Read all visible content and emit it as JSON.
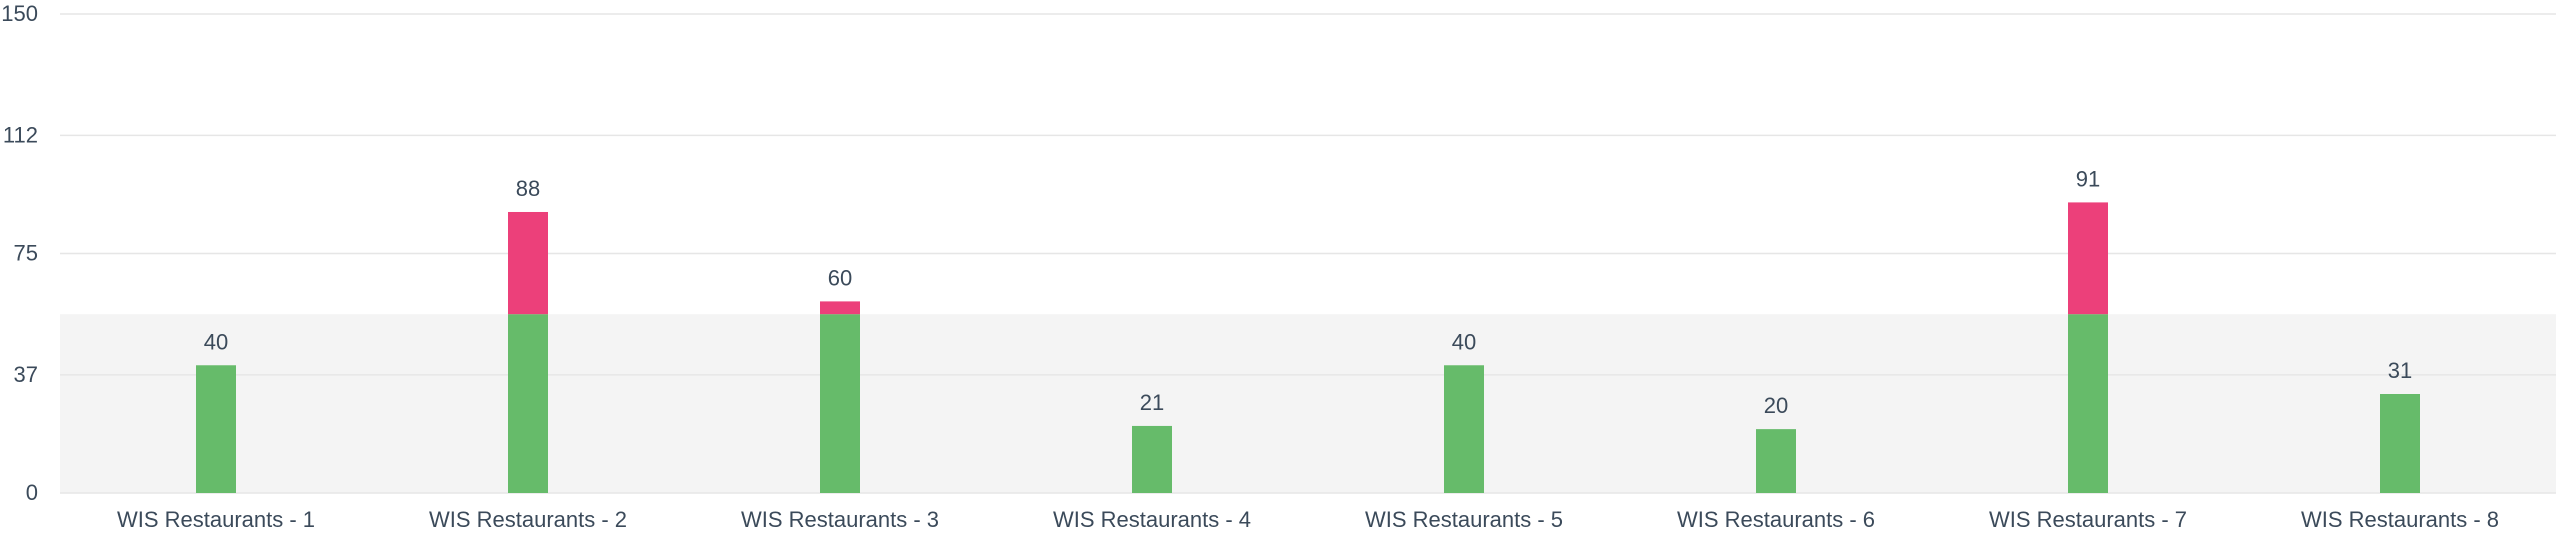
{
  "chart_data": {
    "type": "bar",
    "stacked": true,
    "categories": [
      "WIS Restaurants - 1",
      "WIS Restaurants - 2",
      "WIS Restaurants - 3",
      "WIS Restaurants - 4",
      "WIS Restaurants - 5",
      "WIS Restaurants - 6",
      "WIS Restaurants - 7",
      "WIS Restaurants - 8"
    ],
    "totals": [
      40,
      88,
      60,
      21,
      40,
      20,
      91,
      31
    ],
    "threshold": 56,
    "series": [
      {
        "values": [
          40,
          56,
          56,
          21,
          40,
          20,
          56,
          31
        ],
        "color": "#66bb6a"
      },
      {
        "values": [
          0,
          32,
          4,
          0,
          0,
          0,
          35,
          0
        ],
        "color": "#ec407a"
      }
    ],
    "yticks": [
      "0",
      "37",
      "75",
      "112",
      "150"
    ],
    "ylim": [
      0,
      150
    ],
    "grid": true,
    "band": {
      "from": 0,
      "to": 56,
      "color": "#f4f4f4"
    },
    "title": "",
    "xlabel": "",
    "ylabel": ""
  }
}
